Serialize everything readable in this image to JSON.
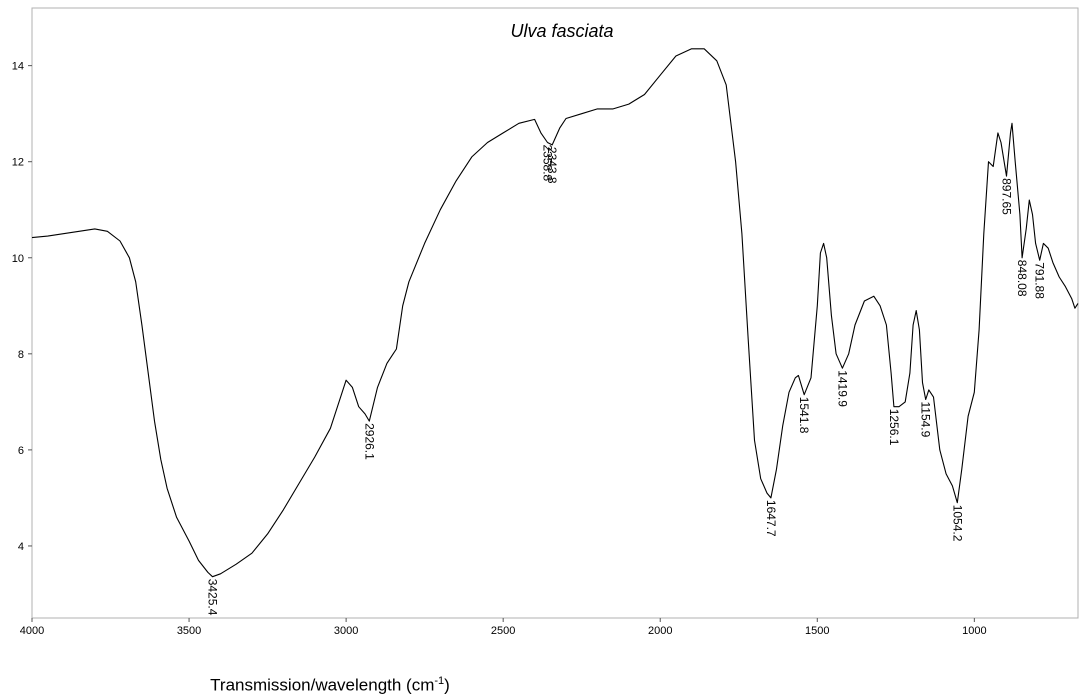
{
  "chart_data": {
    "type": "line",
    "title": "Ulva fasciata",
    "xlabel": "Transmission/wavelength (cm",
    "xlabel_superscript": "-1",
    "xlabel_suffix": ")",
    "ylabel": "",
    "xlim": [
      4000,
      670
    ],
    "ylim": [
      2.5,
      15.2
    ],
    "x_reversed": true,
    "grid": false,
    "x_ticks": [
      4000,
      3500,
      3000,
      2500,
      2000,
      1500,
      1000
    ],
    "y_ticks": [
      4,
      6,
      8,
      10,
      12,
      14
    ],
    "series": [
      {
        "color": "#000000",
        "points": [
          [
            4000,
            10.42
          ],
          [
            3950,
            10.45
          ],
          [
            3900,
            10.5
          ],
          [
            3850,
            10.55
          ],
          [
            3800,
            10.6
          ],
          [
            3760,
            10.55
          ],
          [
            3720,
            10.35
          ],
          [
            3690,
            10.0
          ],
          [
            3670,
            9.5
          ],
          [
            3650,
            8.6
          ],
          [
            3630,
            7.6
          ],
          [
            3610,
            6.6
          ],
          [
            3590,
            5.8
          ],
          [
            3570,
            5.2
          ],
          [
            3540,
            4.6
          ],
          [
            3500,
            4.1
          ],
          [
            3470,
            3.7
          ],
          [
            3440,
            3.45
          ],
          [
            3425.4,
            3.36
          ],
          [
            3400,
            3.42
          ],
          [
            3350,
            3.62
          ],
          [
            3300,
            3.85
          ],
          [
            3250,
            4.25
          ],
          [
            3200,
            4.75
          ],
          [
            3150,
            5.3
          ],
          [
            3100,
            5.85
          ],
          [
            3050,
            6.45
          ],
          [
            3000,
            7.45
          ],
          [
            2980,
            7.3
          ],
          [
            2960,
            6.9
          ],
          [
            2940,
            6.75
          ],
          [
            2926.1,
            6.6
          ],
          [
            2900,
            7.3
          ],
          [
            2870,
            7.8
          ],
          [
            2850,
            8.0
          ],
          [
            2840,
            8.1
          ],
          [
            2820,
            9.0
          ],
          [
            2800,
            9.5
          ],
          [
            2750,
            10.3
          ],
          [
            2700,
            11.0
          ],
          [
            2650,
            11.6
          ],
          [
            2600,
            12.1
          ],
          [
            2550,
            12.4
          ],
          [
            2500,
            12.6
          ],
          [
            2450,
            12.8
          ],
          [
            2400,
            12.88
          ],
          [
            2380,
            12.6
          ],
          [
            2358.8,
            12.4
          ],
          [
            2343.8,
            12.35
          ],
          [
            2320,
            12.7
          ],
          [
            2300,
            12.9
          ],
          [
            2250,
            13.0
          ],
          [
            2200,
            13.1
          ],
          [
            2150,
            13.1
          ],
          [
            2100,
            13.2
          ],
          [
            2050,
            13.4
          ],
          [
            2000,
            13.8
          ],
          [
            1950,
            14.2
          ],
          [
            1900,
            14.35
          ],
          [
            1860,
            14.35
          ],
          [
            1820,
            14.1
          ],
          [
            1790,
            13.6
          ],
          [
            1760,
            12.0
          ],
          [
            1740,
            10.5
          ],
          [
            1720,
            8.3
          ],
          [
            1700,
            6.2
          ],
          [
            1680,
            5.4
          ],
          [
            1660,
            5.1
          ],
          [
            1647.7,
            5.0
          ],
          [
            1630,
            5.6
          ],
          [
            1610,
            6.5
          ],
          [
            1590,
            7.2
          ],
          [
            1570,
            7.5
          ],
          [
            1560,
            7.55
          ],
          [
            1541.8,
            7.15
          ],
          [
            1520,
            7.5
          ],
          [
            1500,
            9.0
          ],
          [
            1490,
            10.1
          ],
          [
            1480,
            10.3
          ],
          [
            1470,
            10.0
          ],
          [
            1455,
            8.8
          ],
          [
            1440,
            8.0
          ],
          [
            1419.9,
            7.7
          ],
          [
            1400,
            8.0
          ],
          [
            1380,
            8.6
          ],
          [
            1350,
            9.1
          ],
          [
            1320,
            9.2
          ],
          [
            1300,
            9.0
          ],
          [
            1280,
            8.6
          ],
          [
            1265,
            7.6
          ],
          [
            1256.1,
            6.9
          ],
          [
            1240,
            6.9
          ],
          [
            1220,
            7.0
          ],
          [
            1205,
            7.6
          ],
          [
            1195,
            8.6
          ],
          [
            1185,
            8.9
          ],
          [
            1175,
            8.5
          ],
          [
            1165,
            7.4
          ],
          [
            1154.9,
            7.05
          ],
          [
            1145,
            7.25
          ],
          [
            1130,
            7.1
          ],
          [
            1110,
            6.0
          ],
          [
            1090,
            5.5
          ],
          [
            1070,
            5.25
          ],
          [
            1054.2,
            4.9
          ],
          [
            1040,
            5.6
          ],
          [
            1020,
            6.7
          ],
          [
            1000,
            7.2
          ],
          [
            985,
            8.5
          ],
          [
            970,
            10.5
          ],
          [
            955,
            12.0
          ],
          [
            940,
            11.9
          ],
          [
            925,
            12.6
          ],
          [
            915,
            12.4
          ],
          [
            897.65,
            11.7
          ],
          [
            885,
            12.6
          ],
          [
            880,
            12.8
          ],
          [
            870,
            12.0
          ],
          [
            855,
            10.9
          ],
          [
            848.08,
            10.0
          ],
          [
            835,
            10.6
          ],
          [
            825,
            11.2
          ],
          [
            815,
            10.9
          ],
          [
            805,
            10.3
          ],
          [
            791.88,
            9.95
          ],
          [
            780,
            10.3
          ],
          [
            765,
            10.2
          ],
          [
            750,
            9.9
          ],
          [
            730,
            9.6
          ],
          [
            710,
            9.4
          ],
          [
            690,
            9.15
          ],
          [
            680,
            8.95
          ],
          [
            670,
            9.05
          ]
        ]
      }
    ],
    "annotations": [
      {
        "label": "3425.4",
        "x": 3425.4,
        "y": 3.36
      },
      {
        "label": "2926.1",
        "x": 2926.1,
        "y": 6.6
      },
      {
        "label": "2358.8",
        "x": 2358.8,
        "y": 12.4
      },
      {
        "label": "2343.8",
        "x": 2343.8,
        "y": 12.35
      },
      {
        "label": "1647.7",
        "x": 1647.7,
        "y": 5.0
      },
      {
        "label": "1541.8",
        "x": 1541.8,
        "y": 7.15
      },
      {
        "label": "1419.9",
        "x": 1419.9,
        "y": 7.7
      },
      {
        "label": "1256.1",
        "x": 1256.1,
        "y": 6.9
      },
      {
        "label": "1154.9",
        "x": 1154.9,
        "y": 7.05
      },
      {
        "label": "1054.2",
        "x": 1054.2,
        "y": 4.9
      },
      {
        "label": "897.65",
        "x": 897.65,
        "y": 11.7
      },
      {
        "label": "848.08",
        "x": 848.08,
        "y": 10.0
      },
      {
        "label": "791.88",
        "x": 791.88,
        "y": 9.95
      }
    ]
  }
}
